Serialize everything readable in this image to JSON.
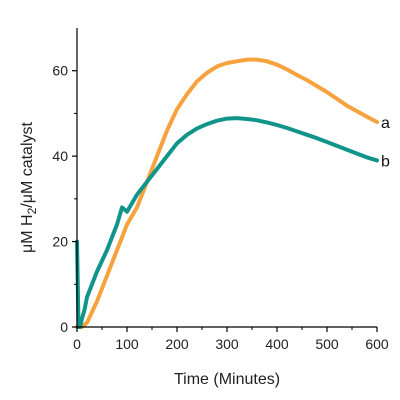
{
  "chart_data": {
    "type": "line",
    "title": "",
    "xlabel": "Time (Minutes)",
    "ylabel_parts": {
      "pre": "μM H",
      "sub": "2",
      "post": "/μM catalyst"
    },
    "xlim": [
      0,
      600
    ],
    "ylim": [
      0,
      70
    ],
    "xticks": [
      0,
      100,
      200,
      300,
      400,
      500,
      600
    ],
    "yticks": [
      0,
      20,
      40,
      60
    ],
    "grid": false,
    "legend": "none",
    "series": [
      {
        "name": "a",
        "color": "#F7A23E",
        "x": [
          0,
          10,
          20,
          40,
          60,
          80,
          100,
          120,
          140,
          160,
          180,
          200,
          220,
          240,
          260,
          280,
          300,
          320,
          340,
          360,
          380,
          400,
          420,
          440,
          460,
          480,
          500,
          520,
          540,
          560,
          580,
          600
        ],
        "y": [
          0,
          0,
          1,
          6,
          12,
          18,
          24,
          28,
          34,
          40,
          46,
          51,
          54.5,
          57.5,
          59.5,
          61,
          61.8,
          62.2,
          62.6,
          62.6,
          62.2,
          61.4,
          60.3,
          59,
          57.8,
          56.4,
          55,
          53.4,
          51.8,
          50.5,
          49.2,
          48
        ]
      },
      {
        "name": "b",
        "color": "#11958A",
        "x": [
          0,
          3,
          6,
          10,
          15,
          20,
          40,
          60,
          80,
          90,
          100,
          120,
          140,
          160,
          180,
          200,
          220,
          240,
          260,
          280,
          300,
          320,
          340,
          360,
          380,
          400,
          420,
          440,
          460,
          480,
          500,
          520,
          540,
          560,
          580,
          600
        ],
        "y": [
          20,
          0,
          0,
          2,
          4,
          7,
          13,
          18,
          24,
          28,
          27,
          31,
          34,
          37,
          40,
          43,
          45,
          46.5,
          47.5,
          48.3,
          48.8,
          48.9,
          48.7,
          48.4,
          47.9,
          47.3,
          46.6,
          45.8,
          45,
          44.2,
          43.3,
          42.4,
          41.5,
          40.6,
          39.7,
          39
        ]
      }
    ]
  }
}
